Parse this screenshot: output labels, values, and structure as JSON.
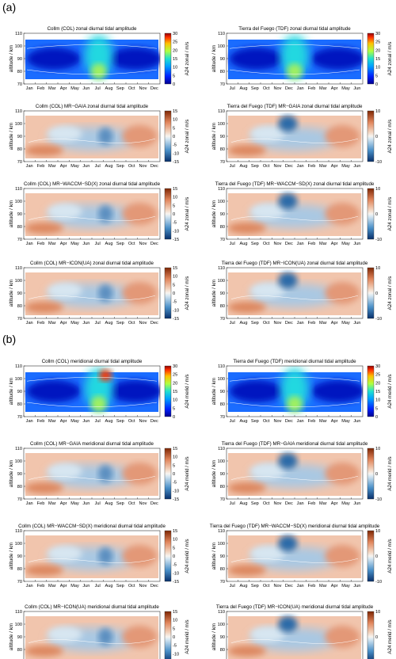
{
  "figure": {
    "panel_labels": [
      "(a)",
      "(b)"
    ],
    "ylabel": "altitude / km",
    "yticks": [
      "70",
      "80",
      "90",
      "100",
      "110"
    ],
    "months_col": [
      "Jan",
      "Feb",
      "Mar",
      "Apr",
      "May",
      "Jun",
      "Jul",
      "Aug",
      "Sep",
      "Oct",
      "Nov",
      "Dec"
    ],
    "months_tdf": [
      "Jul",
      "Aug",
      "Sep",
      "Oct",
      "Nov",
      "Dec",
      "Jan",
      "Feb",
      "Mar",
      "Apr",
      "May",
      "Jun"
    ],
    "cbar_amp_ticks": [
      "0",
      "5",
      "10",
      "15",
      "20",
      "25",
      "30"
    ],
    "cbar_diff_col_ticks": [
      "-15",
      "-10",
      "-5",
      "0",
      "5",
      "10",
      "15"
    ],
    "cbar_diff_tdf_ticks": [
      "-10",
      "0",
      "10"
    ],
    "colors": {
      "amp_high": "#b00000",
      "amp_low": "#00008f",
      "diff_pos": "#8c2d04",
      "diff_neg": "#08306b",
      "neutral": "#f5f5f5"
    }
  },
  "panels": [
    {
      "title": "Collm (COL) zonal diurnal tidal amplitude",
      "cbar_label": "A24 zonal / m/s",
      "kind": "amp",
      "site": "col"
    },
    {
      "title": "Tierra del Fuego (TDF) zonal diurnal tidal amplitude",
      "cbar_label": "A24 zonal / m/s",
      "kind": "amp",
      "site": "tdf"
    },
    {
      "title": "Collm (COL) MR−GAIA zonal diurnal tidal amplitude",
      "cbar_label": "A24 zonal / m/s",
      "kind": "diff",
      "site": "col"
    },
    {
      "title": "Tierra del Fuego (TDF) MR−GAIA zonal diurnal tidal amplitude",
      "cbar_label": "A24 zonal / m/s",
      "kind": "diff",
      "site": "tdf"
    },
    {
      "title": "Collm (COL) MR−WACCM−SD(X) zonal diurnal tidal amplitude",
      "cbar_label": "A24 zonal / m/s",
      "kind": "diff",
      "site": "col"
    },
    {
      "title": "Tierra del Fuego (TDF) MR−WACCM−SD(X) zonal diurnal tidal amplitude",
      "cbar_label": "A24 zonal / m/s",
      "kind": "diff",
      "site": "tdf"
    },
    {
      "title": "Collm (COL) MR−ICON(UA) zonal diurnal tidal amplitude",
      "cbar_label": "A24 zonal / m/s",
      "kind": "diff",
      "site": "col"
    },
    {
      "title": "Tierra del Fuego (TDF) MR−ICON(UA) zonal diurnal tidal amplitude",
      "cbar_label": "A24 zonal / m/s",
      "kind": "diff",
      "site": "tdf"
    },
    {
      "title": "Collm (COL) meridional diurnal tidal amplitude",
      "cbar_label": "A24 merid / m/s",
      "kind": "amp",
      "site": "col"
    },
    {
      "title": "Tierra del Fuego (TDF) meridional diurnal tidal amplitude",
      "cbar_label": "A24 merid / m/s",
      "kind": "amp",
      "site": "tdf"
    },
    {
      "title": "Collm (COL) MR−GAIA meridional diurnal tidal amplitude",
      "cbar_label": "A24 merid / m/s",
      "kind": "diff",
      "site": "col"
    },
    {
      "title": "Tierra del Fuego (TDF) MR−GAIA meridional diurnal tidal amplitude",
      "cbar_label": "A24 merid / m/s",
      "kind": "diff",
      "site": "tdf"
    },
    {
      "title": "Collm (COL) MR−WACCM−SD(X) meridional diurnal tidal amplitude",
      "cbar_label": "A24 merid / m/s",
      "kind": "diff",
      "site": "col"
    },
    {
      "title": "Tierra del Fuego (TDF) MR−WACCM−SD(X) meridional diurnal tidal amplitude",
      "cbar_label": "A24 merid / m/s",
      "kind": "diff",
      "site": "tdf"
    },
    {
      "title": "Collm (COL) MR−ICON(UA) meridional diurnal tidal amplitude",
      "cbar_label": "A24 merid / m/s",
      "kind": "diff",
      "site": "col"
    },
    {
      "title": "Tierra del Fuego (TDF) MR−ICON(UA) meridional diurnal tidal amplitude",
      "cbar_label": "A24 merid / m/s",
      "kind": "diff",
      "site": "tdf"
    }
  ]
}
